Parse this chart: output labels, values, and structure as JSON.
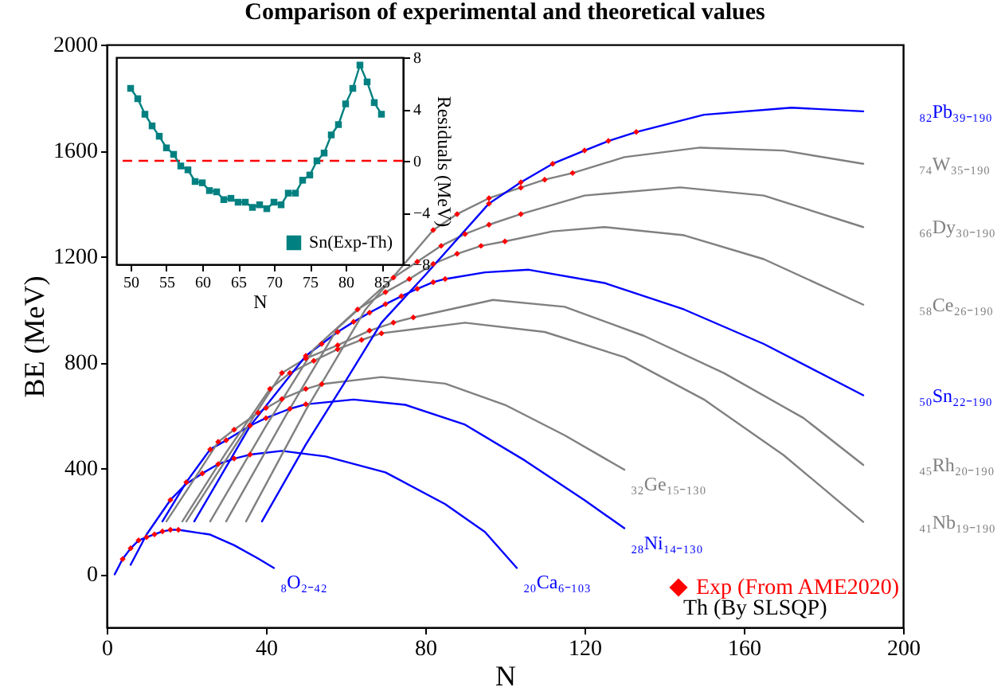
{
  "chart_data": [
    {
      "type": "line",
      "title": "Comparison of experimental and theoretical values",
      "xlabel": "N",
      "ylabel": "BE (MeV)",
      "xlim": [
        0,
        200
      ],
      "xticks": [
        0,
        40,
        80,
        120,
        160,
        200
      ],
      "ylim": [
        -200,
        2000
      ],
      "yticks": [
        0,
        400,
        800,
        1200,
        1600,
        2000
      ],
      "legend": "bottom right",
      "annotations": [
        "Th (By SLSQP)"
      ],
      "series": [
        {
          "name": "₈O₂₋₄₂",
          "color": "#0000ff",
          "x": [
            2,
            4,
            6,
            8,
            10,
            12,
            14,
            16,
            18,
            26,
            32,
            38,
            42
          ],
          "values": [
            0,
            58,
            98,
            128,
            140,
            151,
            162,
            168,
            168,
            150,
            110,
            60,
            24
          ]
        },
        {
          "name": "₂₀Ca₆₋₁₀₃",
          "color": "#0000ff",
          "x": [
            6,
            10,
            16,
            20,
            24,
            28,
            32,
            36,
            44,
            55,
            70,
            85,
            95,
            103
          ],
          "values": [
            36,
            150,
            281,
            342,
            381,
            416,
            437,
            452,
            466,
            445,
            385,
            265,
            160,
            24
          ]
        },
        {
          "name": "₂₈Ni₁₄₋₁₃₀",
          "color": "#0000ff",
          "x": [
            14,
            20,
            26,
            30,
            36,
            40,
            46,
            50,
            62,
            75,
            90,
            105,
            120,
            130
          ],
          "values": [
            200,
            348,
            472,
            506,
            561,
            590,
            625,
            642,
            660,
            640,
            565,
            430,
            280,
            174
          ]
        },
        {
          "name": "₃₂Ge₁₅₋₁₃₀",
          "color": "#808080",
          "x": [
            15,
            22,
            28,
            32,
            38,
            44,
            50,
            54,
            69,
            85,
            100,
            115,
            130
          ],
          "values": [
            200,
            360,
            500,
            546,
            610,
            662,
            700,
            718,
            745,
            720,
            640,
            525,
            395
          ]
        },
        {
          "name": "₄₁Nb₁₉₋₁₉₀",
          "color": "#808080",
          "x": [
            19,
            30,
            41,
            46,
            52,
            58,
            64,
            69,
            90,
            110,
            130,
            150,
            170,
            190
          ],
          "values": [
            200,
            460,
            700,
            760,
            806,
            850,
            885,
            910,
            950,
            915,
            820,
            660,
            450,
            198
          ]
        },
        {
          "name": "₄₅Rh₂₀₋₁₉₀",
          "color": "#808080",
          "x": [
            20,
            32,
            44,
            50,
            58,
            66,
            72,
            77,
            97,
            115,
            135,
            155,
            175,
            190
          ],
          "values": [
            200,
            480,
            760,
            815,
            865,
            920,
            950,
            970,
            1036,
            1010,
            900,
            760,
            590,
            413
          ]
        },
        {
          "name": "₅₀Sn₂₂₋₁₉₀",
          "color": "#0000ff",
          "x": [
            22,
            36,
            50,
            54,
            58,
            62,
            66,
            70,
            74,
            78,
            82,
            85,
            95,
            106,
            125,
            145,
            165,
            190
          ],
          "values": [
            200,
            560,
            825,
            870,
            915,
            953,
            988,
            1020,
            1050,
            1078,
            1103,
            1115,
            1140,
            1150,
            1100,
            1000,
            870,
            676
          ]
        },
        {
          "name": "₅₈Ce₂₆₋₁₉₀",
          "color": "#808080",
          "x": [
            26,
            40,
            52,
            63,
            70,
            76,
            82,
            88,
            94,
            100,
            112,
            125,
            145,
            165,
            190
          ],
          "values": [
            200,
            560,
            850,
            1000,
            1065,
            1115,
            1172,
            1210,
            1240,
            1257,
            1295,
            1311,
            1280,
            1190,
            1018
          ]
        },
        {
          "name": "₆₆Dy₃₀₋₁₉₀",
          "color": "#808080",
          "x": [
            30,
            45,
            58,
            72,
            78,
            84,
            90,
            96,
            104,
            120,
            144,
            165,
            190
          ],
          "values": [
            200,
            600,
            930,
            1120,
            1180,
            1240,
            1285,
            1320,
            1360,
            1430,
            1461,
            1430,
            1311
          ]
        },
        {
          "name": "₇₄W₃₅₋₁₉₀",
          "color": "#808080",
          "x": [
            35,
            50,
            65,
            82,
            88,
            96,
            104,
            110,
            117,
            130,
            149,
            170,
            190
          ],
          "values": [
            200,
            620,
            1000,
            1300,
            1360,
            1420,
            1460,
            1490,
            1515,
            1575,
            1611,
            1600,
            1550
          ]
        },
        {
          "name": "₈₂Pb₃₉₋₁₉₀",
          "color": "#0000ff",
          "x": [
            39,
            50,
            60,
            69,
            80,
            96,
            104,
            112,
            120,
            126,
            133,
            150,
            172,
            190
          ],
          "values": [
            200,
            490,
            730,
            950,
            1130,
            1400,
            1480,
            1550,
            1600,
            1636,
            1670,
            1735,
            1762,
            1748
          ]
        },
        {
          "name": "Exp (From AME2020)",
          "type": "scatter",
          "marker": "diamond",
          "color": "#ff0000",
          "x": [
            4,
            6,
            8,
            10,
            12,
            14,
            16,
            18,
            16,
            24,
            28,
            32,
            36,
            20,
            26,
            30,
            36,
            40,
            46,
            50,
            28,
            32,
            38,
            40,
            44,
            50,
            54,
            41,
            46,
            52,
            58,
            64,
            69,
            44,
            50,
            58,
            66,
            72,
            77,
            50,
            54,
            58,
            62,
            66,
            70,
            74,
            78,
            82,
            85,
            63,
            70,
            76,
            82,
            88,
            94,
            100,
            72,
            78,
            84,
            90,
            96,
            104,
            82,
            88,
            96,
            104,
            110,
            117,
            96,
            104,
            112,
            120,
            126,
            133
          ],
          "values": [
            58,
            98,
            128,
            140,
            151,
            162,
            168,
            168,
            281,
            381,
            416,
            437,
            452,
            348,
            472,
            506,
            561,
            590,
            625,
            642,
            500,
            546,
            610,
            628,
            662,
            700,
            718,
            700,
            760,
            806,
            850,
            885,
            910,
            760,
            815,
            865,
            920,
            950,
            970,
            825,
            870,
            915,
            953,
            988,
            1020,
            1050,
            1078,
            1103,
            1115,
            1000,
            1065,
            1115,
            1172,
            1210,
            1240,
            1257,
            1120,
            1180,
            1240,
            1285,
            1320,
            1360,
            1300,
            1360,
            1420,
            1460,
            1490,
            1515,
            1400,
            1480,
            1550,
            1600,
            1636,
            1670
          ]
        }
      ]
    },
    {
      "type": "line",
      "xlabel": "N",
      "ylabel": "Residuals (MeV)",
      "xlim": [
        48,
        88
      ],
      "xticks": [
        50,
        55,
        60,
        65,
        70,
        75,
        80,
        85
      ],
      "ylim": [
        -8,
        8
      ],
      "yticks": [
        -8,
        -4,
        0,
        4,
        8
      ],
      "legend": "bottom right",
      "marker": "square",
      "ref_lines": [
        {
          "axis": "y",
          "value": 0,
          "color": "#ff0000",
          "line_style": "dashed"
        }
      ],
      "series": [
        {
          "name": "Sn(Exp-Th)",
          "color": "#008080",
          "x": [
            50,
            51,
            52,
            53,
            54,
            55,
            56,
            57,
            58,
            59,
            60,
            61,
            62,
            63,
            64,
            65,
            66,
            67,
            68,
            69,
            70,
            71,
            72,
            73,
            74,
            75,
            76,
            77,
            78,
            79,
            80,
            81,
            82,
            83,
            84,
            85
          ],
          "values": [
            5.6,
            4.8,
            3.6,
            2.7,
            1.9,
            1.0,
            0.5,
            -0.4,
            -0.7,
            -1.6,
            -1.7,
            -2.3,
            -2.4,
            -3.0,
            -2.9,
            -3.2,
            -3.2,
            -3.6,
            -3.4,
            -3.7,
            -3.2,
            -3.4,
            -2.5,
            -2.5,
            -1.5,
            -1.1,
            0,
            0.6,
            2.0,
            2.8,
            4.4,
            5.6,
            7.4,
            6.1,
            4.5,
            3.6
          ]
        }
      ]
    }
  ]
}
